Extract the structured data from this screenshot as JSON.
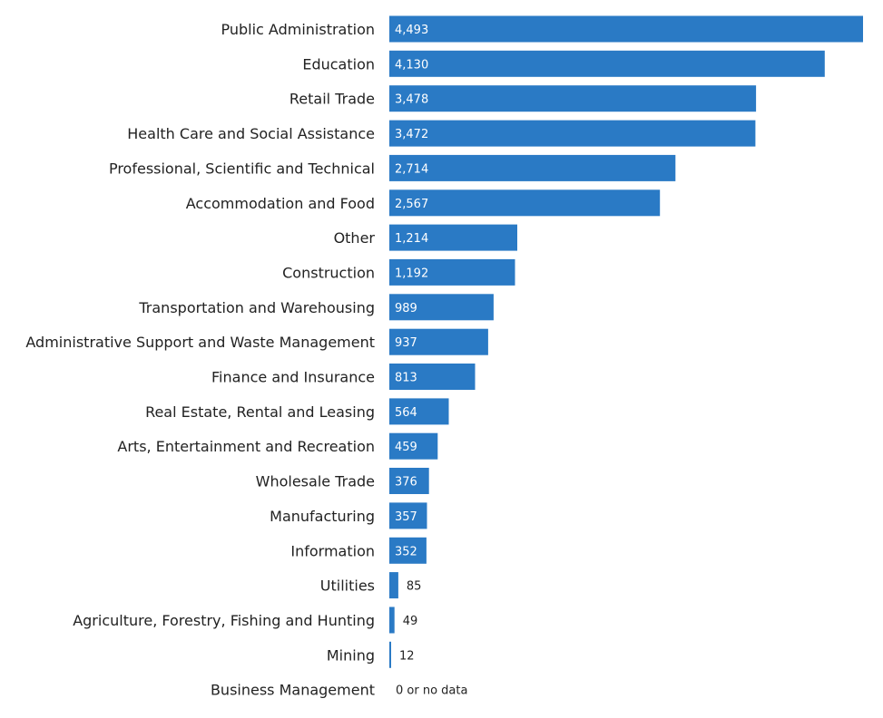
{
  "chart_data": {
    "type": "bar",
    "orientation": "horizontal",
    "title": "",
    "xlabel": "",
    "ylabel": "",
    "xlim": [
      0,
      4493
    ],
    "grid": false,
    "bar_color": "#2a7ac5",
    "no_data_label": "0 or no data",
    "categories": [
      "Public Administration",
      "Education",
      "Retail Trade",
      "Health Care and Social Assistance",
      "Professional, Scientific and Technical",
      "Accommodation and Food",
      "Other",
      "Construction",
      "Transportation and Warehousing",
      "Administrative Support and Waste Management",
      "Finance and Insurance",
      "Real Estate, Rental and Leasing",
      "Arts, Entertainment and Recreation",
      "Wholesale Trade",
      "Manufacturing",
      "Information",
      "Utilities",
      "Agriculture, Forestry, Fishing and Hunting",
      "Mining",
      "Business Management"
    ],
    "values": [
      4493,
      4130,
      3478,
      3472,
      2714,
      2567,
      1214,
      1192,
      989,
      937,
      813,
      564,
      459,
      376,
      357,
      352,
      85,
      49,
      12,
      0
    ],
    "value_labels": [
      "4,493",
      "4,130",
      "3,478",
      "3,472",
      "2,714",
      "2,567",
      "1,214",
      "1,192",
      "989",
      "937",
      "813",
      "564",
      "459",
      "376",
      "357",
      "352",
      "85",
      "49",
      "12",
      "0 or no data"
    ]
  }
}
